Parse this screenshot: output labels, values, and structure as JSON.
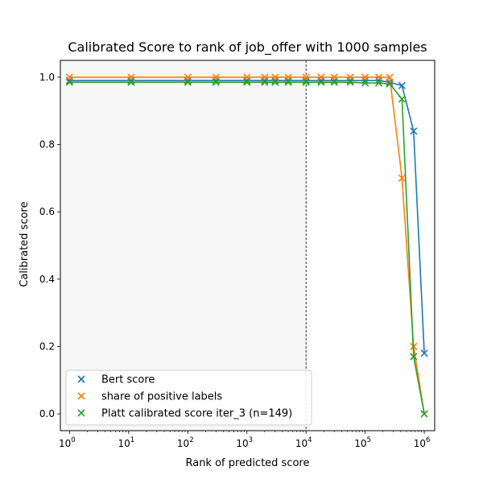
{
  "chart_data": {
    "type": "scatter",
    "title": "Calibrated Score to rank of job_offer with 1000 samples",
    "xlabel": "Rank of predicted score",
    "ylabel": "Calibrated score",
    "xscale": "log",
    "xlim": [
      0.7,
      1500000
    ],
    "ylim": [
      -0.05,
      1.05
    ],
    "x_ticks": [
      {
        "value": 1,
        "base": "10",
        "exp": "0"
      },
      {
        "value": 10,
        "base": "10",
        "exp": "1"
      },
      {
        "value": 100,
        "base": "10",
        "exp": "2"
      },
      {
        "value": 1000,
        "base": "10",
        "exp": "3"
      },
      {
        "value": 10000,
        "base": "10",
        "exp": "4"
      },
      {
        "value": 100000,
        "base": "10",
        "exp": "5"
      },
      {
        "value": 1000000,
        "base": "10",
        "exp": "6"
      }
    ],
    "y_ticks": [
      {
        "value": 0.0,
        "label": "0.0"
      },
      {
        "value": 0.2,
        "label": "0.2"
      },
      {
        "value": 0.4,
        "label": "0.4"
      },
      {
        "value": 0.6,
        "label": "0.6"
      },
      {
        "value": 0.8,
        "label": "0.8"
      },
      {
        "value": 1.0,
        "label": "1.0"
      }
    ],
    "shaded_region": {
      "x_from": 0.7,
      "x_to": 10000,
      "color": "#f7f7f7"
    },
    "vertical_line": {
      "x": 10000,
      "style": "dashed",
      "color": "#000000"
    },
    "legend_position": "lower-left",
    "marker": "x",
    "series": [
      {
        "name": "Bert score",
        "color": "#1f77b4",
        "x": [
          1,
          11,
          100,
          300,
          1000,
          2000,
          3000,
          5000,
          10000,
          18000,
          30000,
          56000,
          100000,
          170000,
          260000,
          420000,
          660000,
          1000000
        ],
        "y": [
          0.99,
          0.99,
          0.99,
          0.99,
          0.99,
          0.99,
          0.99,
          0.99,
          0.99,
          0.99,
          0.99,
          0.99,
          0.99,
          0.99,
          0.985,
          0.975,
          0.84,
          0.18
        ]
      },
      {
        "name": "share of positive labels",
        "color": "#ff7f0e",
        "x": [
          1,
          11,
          100,
          300,
          1000,
          2000,
          3000,
          5000,
          10000,
          18000,
          30000,
          56000,
          100000,
          170000,
          260000,
          420000,
          660000,
          1000000
        ],
        "y": [
          1.0,
          1.0,
          1.0,
          1.0,
          1.0,
          1.0,
          1.0,
          1.0,
          1.0,
          1.0,
          1.0,
          1.0,
          1.0,
          1.0,
          1.0,
          0.7,
          0.2,
          0.0
        ]
      },
      {
        "name": "Platt calibrated score iter_3 (n=149)",
        "color": "#2ca02c",
        "x": [
          1,
          11,
          100,
          300,
          1000,
          2000,
          3000,
          5000,
          10000,
          18000,
          30000,
          56000,
          100000,
          170000,
          260000,
          420000,
          660000,
          1000000
        ],
        "y": [
          0.985,
          0.985,
          0.985,
          0.985,
          0.985,
          0.985,
          0.985,
          0.985,
          0.985,
          0.985,
          0.985,
          0.985,
          0.983,
          0.983,
          0.98,
          0.935,
          0.17,
          0.0
        ]
      }
    ]
  }
}
